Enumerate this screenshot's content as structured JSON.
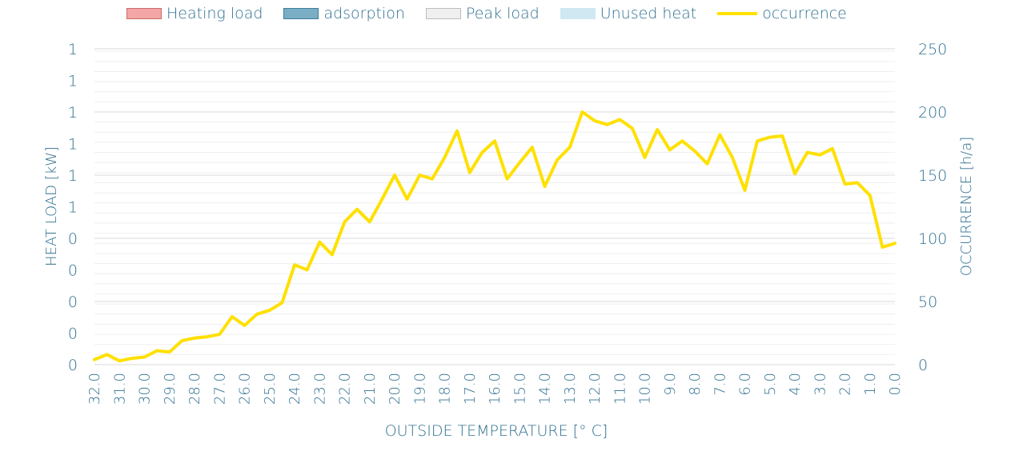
{
  "legend": {
    "items": [
      {
        "label": "Heating load",
        "kind": "box",
        "fill": "#f4a6a6",
        "stroke": "#c96b6b"
      },
      {
        "label": "adsorption",
        "kind": "box",
        "fill": "#7aaec4",
        "stroke": "#3c7f9c"
      },
      {
        "label": "Peak load",
        "kind": "box",
        "fill": "#efefef",
        "stroke": "#bdbdbd"
      },
      {
        "label": "Unused heat",
        "kind": "box",
        "fill": "#cfe8f1",
        "stroke": "#cfe8f1"
      },
      {
        "label": "occurrence",
        "kind": "line",
        "fill": "#ffe000",
        "stroke": "#ffe000"
      }
    ]
  },
  "colors": {
    "text": "#2f6f8f",
    "grid_major": "#d9d9d9",
    "grid_minor": "#efefef",
    "series": "#ffe000"
  },
  "chart_data": {
    "type": "line",
    "xlabel": "OUTSIDE TEMPERATURE [° C]",
    "ylabel_left": "HEAT LOAD [kW]",
    "ylabel_right": "OCCURRENCE [h/a]",
    "left_ticks": [
      "0",
      "0",
      "0",
      "0",
      "0",
      "1",
      "1",
      "1",
      "1",
      "1",
      "1"
    ],
    "right_ticks": [
      "0",
      "50",
      "100",
      "150",
      "200",
      "250"
    ],
    "ylim_right": [
      0,
      250
    ],
    "grid": true,
    "x_ticks": [
      "32.0",
      "31.0",
      "30.0",
      "29.0",
      "28.0",
      "27.0",
      "26.0",
      "25.0",
      "24.0",
      "23.0",
      "22.0",
      "21.0",
      "20.0",
      "19.0",
      "18.0",
      "17.0",
      "16.0",
      "15.0",
      "14.0",
      "13.0",
      "12.0",
      "11.0",
      "10.0",
      "9.0",
      "8.0",
      "7.0",
      "6.0",
      "5.0",
      "4.0",
      "3.0",
      "2.0",
      "1.0",
      "0.0"
    ],
    "x_range": [
      32,
      0
    ],
    "series": [
      {
        "name": "occurrence",
        "color": "#ffe000",
        "x": [
          32.0,
          31.5,
          31.0,
          30.5,
          30.0,
          29.5,
          29.0,
          28.5,
          28.0,
          27.5,
          27.0,
          26.5,
          26.0,
          25.5,
          25.0,
          24.5,
          24.0,
          23.5,
          23.0,
          22.5,
          22.0,
          21.5,
          21.0,
          20.5,
          20.0,
          19.5,
          19.0,
          18.5,
          18.0,
          17.5,
          17.0,
          16.5,
          16.0,
          15.5,
          15.0,
          14.5,
          14.0,
          13.5,
          13.0,
          12.5,
          12.0,
          11.5,
          11.0,
          10.5,
          10.0,
          9.5,
          9.0,
          8.5,
          8.0,
          7.5,
          7.0,
          6.5,
          6.0,
          5.5,
          5.0,
          4.5,
          4.0,
          3.5,
          3.0,
          2.5,
          2.0,
          1.5,
          1.0,
          0.5,
          0.0
        ],
        "values": [
          4,
          8,
          3,
          5,
          6,
          11,
          10,
          19,
          21,
          22,
          24,
          38,
          31,
          40,
          43,
          49,
          79,
          75,
          97,
          87,
          113,
          123,
          113,
          131,
          150,
          131,
          150,
          147,
          164,
          185,
          152,
          168,
          177,
          147,
          160,
          172,
          141,
          162,
          172,
          200,
          193,
          190,
          194,
          187,
          164,
          186,
          170,
          177,
          169,
          159,
          182,
          164,
          138,
          177,
          180,
          181,
          151,
          168,
          166,
          171,
          143,
          144,
          134,
          93,
          96
        ]
      }
    ]
  }
}
